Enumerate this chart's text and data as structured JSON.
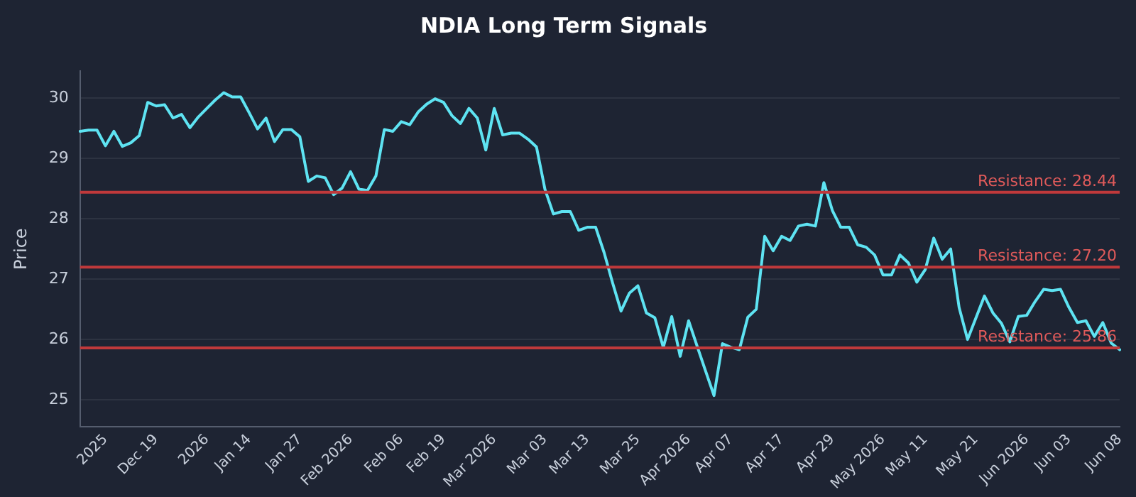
{
  "chart_data": {
    "type": "line",
    "title": "NDIA Long Term Signals",
    "ylabel": "Price",
    "categories": [
      null,
      null,
      null,
      "2025",
      null,
      null,
      null,
      null,
      null,
      "Dec 19",
      null,
      null,
      null,
      null,
      null,
      "2026",
      null,
      null,
      null,
      null,
      "Jan 14",
      null,
      null,
      null,
      null,
      null,
      "Jan 27",
      null,
      null,
      null,
      null,
      null,
      "Feb 2026",
      null,
      null,
      null,
      null,
      null,
      "Feb 06",
      null,
      null,
      null,
      null,
      "Feb 19",
      null,
      null,
      null,
      null,
      null,
      "Mar 2026",
      null,
      null,
      null,
      null,
      null,
      "Mar 03",
      null,
      null,
      null,
      null,
      "Mar 13",
      null,
      null,
      null,
      null,
      null,
      "Mar 25",
      null,
      null,
      null,
      null,
      null,
      "Apr 2026",
      null,
      null,
      null,
      null,
      "Apr 07",
      null,
      null,
      null,
      null,
      null,
      "Apr 17",
      null,
      null,
      null,
      null,
      null,
      "Apr 29",
      null,
      null,
      null,
      null,
      null,
      "May 2026",
      null,
      null,
      null,
      null,
      "May 11",
      null,
      null,
      null,
      null,
      null,
      "May 21",
      null,
      null,
      null,
      null,
      null,
      "Jun 2026",
      null,
      null,
      null,
      null,
      "Jun 03",
      null,
      null,
      null,
      null,
      null,
      "Jun 08"
    ],
    "series": [
      {
        "color": "#5ee3f2",
        "values": [
          29.45,
          29.47,
          29.47,
          29.21,
          29.45,
          29.2,
          29.26,
          29.38,
          29.93,
          29.87,
          29.89,
          29.67,
          29.73,
          29.51,
          29.69,
          29.83,
          29.97,
          30.09,
          30.02,
          30.02,
          29.76,
          29.49,
          29.67,
          29.28,
          29.48,
          29.48,
          29.36,
          28.62,
          28.71,
          28.68,
          28.4,
          28.51,
          28.78,
          28.49,
          28.47,
          28.71,
          29.48,
          29.45,
          29.61,
          29.56,
          29.77,
          29.9,
          29.99,
          29.93,
          29.71,
          29.58,
          29.83,
          29.67,
          29.14,
          29.83,
          29.39,
          29.42,
          29.42,
          29.32,
          29.19,
          28.49,
          28.08,
          28.12,
          28.12,
          27.81,
          27.86,
          27.86,
          27.44,
          26.94,
          26.47,
          26.77,
          26.89,
          26.44,
          26.36,
          25.87,
          26.38,
          25.72,
          26.31,
          25.89,
          25.48,
          25.07,
          25.93,
          25.87,
          25.83,
          26.37,
          26.5,
          27.71,
          27.47,
          27.71,
          27.64,
          27.88,
          27.91,
          27.88,
          28.6,
          28.14,
          27.86,
          27.86,
          27.57,
          27.53,
          27.4,
          27.07,
          27.07,
          27.4,
          27.27,
          26.95,
          27.16,
          27.68,
          27.33,
          27.5,
          26.53,
          26.0,
          26.36,
          26.72,
          26.44,
          26.27,
          25.96,
          26.38,
          26.4,
          26.63,
          26.83,
          26.81,
          26.83,
          26.53,
          26.28,
          26.31,
          26.05,
          26.28,
          25.94,
          25.83
        ]
      }
    ],
    "ylim": [
      24.55,
      30.45
    ],
    "yticks": [
      25,
      26,
      27,
      28,
      29,
      30
    ],
    "ref_lines": [
      {
        "axis": "y",
        "value": 28.44,
        "label": "Resistance: 28.44",
        "color": "#c0393b"
      },
      {
        "axis": "y",
        "value": 27.2,
        "label": "Resistance: 27.20",
        "color": "#c0393b"
      },
      {
        "axis": "y",
        "value": 25.86,
        "label": "Resistance: 25.86",
        "color": "#c0393b"
      }
    ],
    "grid": "y",
    "legend": false,
    "marker": "none",
    "line_style": "solid"
  }
}
